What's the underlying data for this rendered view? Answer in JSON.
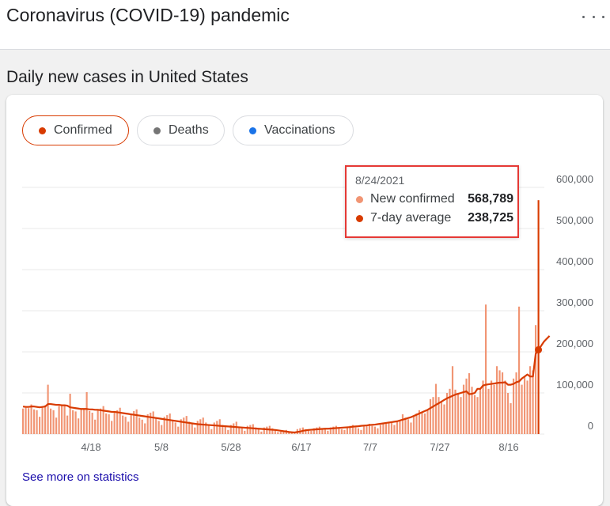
{
  "app": {
    "title": "Coronavirus (COVID-19) pandemic",
    "more_icon": "more-horizontal-icon"
  },
  "section": {
    "title": "Daily new cases in United States"
  },
  "chips": [
    {
      "label": "Confirmed",
      "color": "#d83b01",
      "selected": true
    },
    {
      "label": "Deaths",
      "color": "#757575",
      "selected": false
    },
    {
      "label": "Vaccinations",
      "color": "#1a73e8",
      "selected": false
    }
  ],
  "tooltip": {
    "date": "8/24/2021",
    "rows": [
      {
        "label": "New confirmed",
        "value": "568,789",
        "color": "#f19574"
      },
      {
        "label": "7-day average",
        "value": "238,725",
        "color": "#d83b01"
      }
    ]
  },
  "see_more": "See more on statistics",
  "colors": {
    "bars": "#f19574",
    "line": "#d83b01",
    "grid": "#e9e9e9",
    "axis_text": "#5f6368"
  },
  "chart_data": {
    "type": "bar",
    "title": "",
    "xlabel": "",
    "ylabel": "",
    "ylim": [
      0,
      600000
    ],
    "yticks": [
      "0",
      "100,000",
      "200,000",
      "300,000",
      "400,000",
      "500,000",
      "600,000"
    ],
    "xticks": [
      "4/18",
      "5/8",
      "5/28",
      "6/17",
      "7/7",
      "7/27",
      "8/16"
    ],
    "x_range": [
      "3/31/2021",
      "8/24/2021"
    ],
    "grid": true,
    "series": [
      {
        "name": "New confirmed",
        "values": [
          62000,
          64000,
          63000,
          72000,
          60000,
          58000,
          42000,
          65000,
          70000,
          120000,
          62000,
          58000,
          40000,
          68000,
          72000,
          69000,
          45000,
          98000,
          58000,
          55000,
          38000,
          62000,
          60000,
          102000,
          56000,
          52000,
          35000,
          58000,
          62000,
          68000,
          50000,
          48000,
          32000,
          55000,
          58000,
          64000,
          45000,
          42000,
          30000,
          50000,
          56000,
          60000,
          40000,
          35000,
          26000,
          48000,
          52000,
          55000,
          38000,
          32000,
          22000,
          42000,
          46000,
          50000,
          34000,
          28000,
          18000,
          36000,
          40000,
          44000,
          30000,
          26000,
          16000,
          32000,
          36000,
          40000,
          28000,
          24000,
          12000,
          28000,
          32000,
          36000,
          22000,
          20000,
          10000,
          22000,
          26000,
          30000,
          18000,
          16000,
          8000,
          20000,
          22000,
          24000,
          16000,
          14000,
          6000,
          16000,
          18000,
          20000,
          14000,
          10000,
          5000,
          6000,
          8000,
          10000,
          4000,
          3000,
          2000,
          12000,
          14000,
          16000,
          12000,
          10000,
          8000,
          14000,
          16000,
          18000,
          14000,
          12000,
          8000,
          16000,
          18000,
          20000,
          15000,
          12000,
          10000,
          18000,
          20000,
          22000,
          16000,
          14000,
          10000,
          20000,
          22000,
          25000,
          20000,
          18000,
          14000,
          22000,
          24000,
          26000,
          30000,
          28000,
          22000,
          32000,
          34000,
          48000,
          40000,
          36000,
          28000,
          44000,
          50000,
          58000,
          52000,
          50000,
          60000,
          85000,
          90000,
          122000,
          90000,
          80000,
          72000,
          100000,
          110000,
          165000,
          108000,
          100000,
          90000,
          120000,
          135000,
          148000,
          115000,
          95000,
          90000,
          110000,
          130000,
          315000,
          110000,
          130000,
          120000,
          165000,
          155000,
          150000,
          130000,
          100000,
          75000,
          135000,
          150000,
          310000,
          120000,
          140000,
          130000,
          165000,
          155000,
          265000,
          568789
        ]
      },
      {
        "name": "7-day average",
        "values": [
          67000,
          66000,
          66000,
          67000,
          67000,
          66000,
          65000,
          66000,
          67000,
          73000,
          73000,
          72000,
          71000,
          71000,
          70000,
          70000,
          69000,
          65000,
          64000,
          63000,
          62000,
          61000,
          61000,
          61000,
          60000,
          60000,
          59000,
          59000,
          58000,
          57000,
          56000,
          55000,
          54000,
          54000,
          53000,
          52000,
          51000,
          50000,
          49000,
          48000,
          47000,
          46000,
          45000,
          44000,
          43000,
          42000,
          41000,
          40000,
          39000,
          38000,
          37000,
          36000,
          35000,
          34000,
          33000,
          32000,
          31000,
          30000,
          29000,
          28000,
          27000,
          26000,
          25000,
          24000,
          23500,
          23000,
          22500,
          22000,
          21500,
          21000,
          20500,
          20000,
          19500,
          19000,
          18500,
          18000,
          17500,
          17000,
          16500,
          16000,
          15500,
          15000,
          14500,
          14000,
          13500,
          13000,
          12500,
          12000,
          11500,
          11000,
          10500,
          10000,
          9000,
          8000,
          7000,
          6000,
          5000,
          4500,
          4000,
          5000,
          6000,
          8000,
          9000,
          10000,
          10500,
          11000,
          11500,
          12000,
          12500,
          13000,
          13000,
          13500,
          14000,
          14500,
          15000,
          15500,
          16000,
          16500,
          17000,
          18000,
          18500,
          19000,
          20000,
          20500,
          21000,
          22000,
          22500,
          23000,
          24000,
          25000,
          26000,
          27000,
          28000,
          29000,
          30000,
          31000,
          33000,
          35000,
          37000,
          39000,
          41000,
          44000,
          47000,
          50000,
          53000,
          56000,
          59000,
          63000,
          67000,
          71000,
          75000,
          79000,
          83000,
          87000,
          90000,
          93000,
          96000,
          98000,
          100000,
          102000,
          104000,
          97000,
          98000,
          100000,
          110000,
          110000,
          118000,
          120000,
          121000,
          122000,
          123000,
          124000,
          125000,
          125000,
          126000,
          120000,
          120000,
          122000,
          126000,
          128000,
          135000,
          140000,
          145000,
          140000,
          140000,
          195000,
          205000,
          215000,
          225000,
          232000,
          238725
        ]
      }
    ]
  }
}
